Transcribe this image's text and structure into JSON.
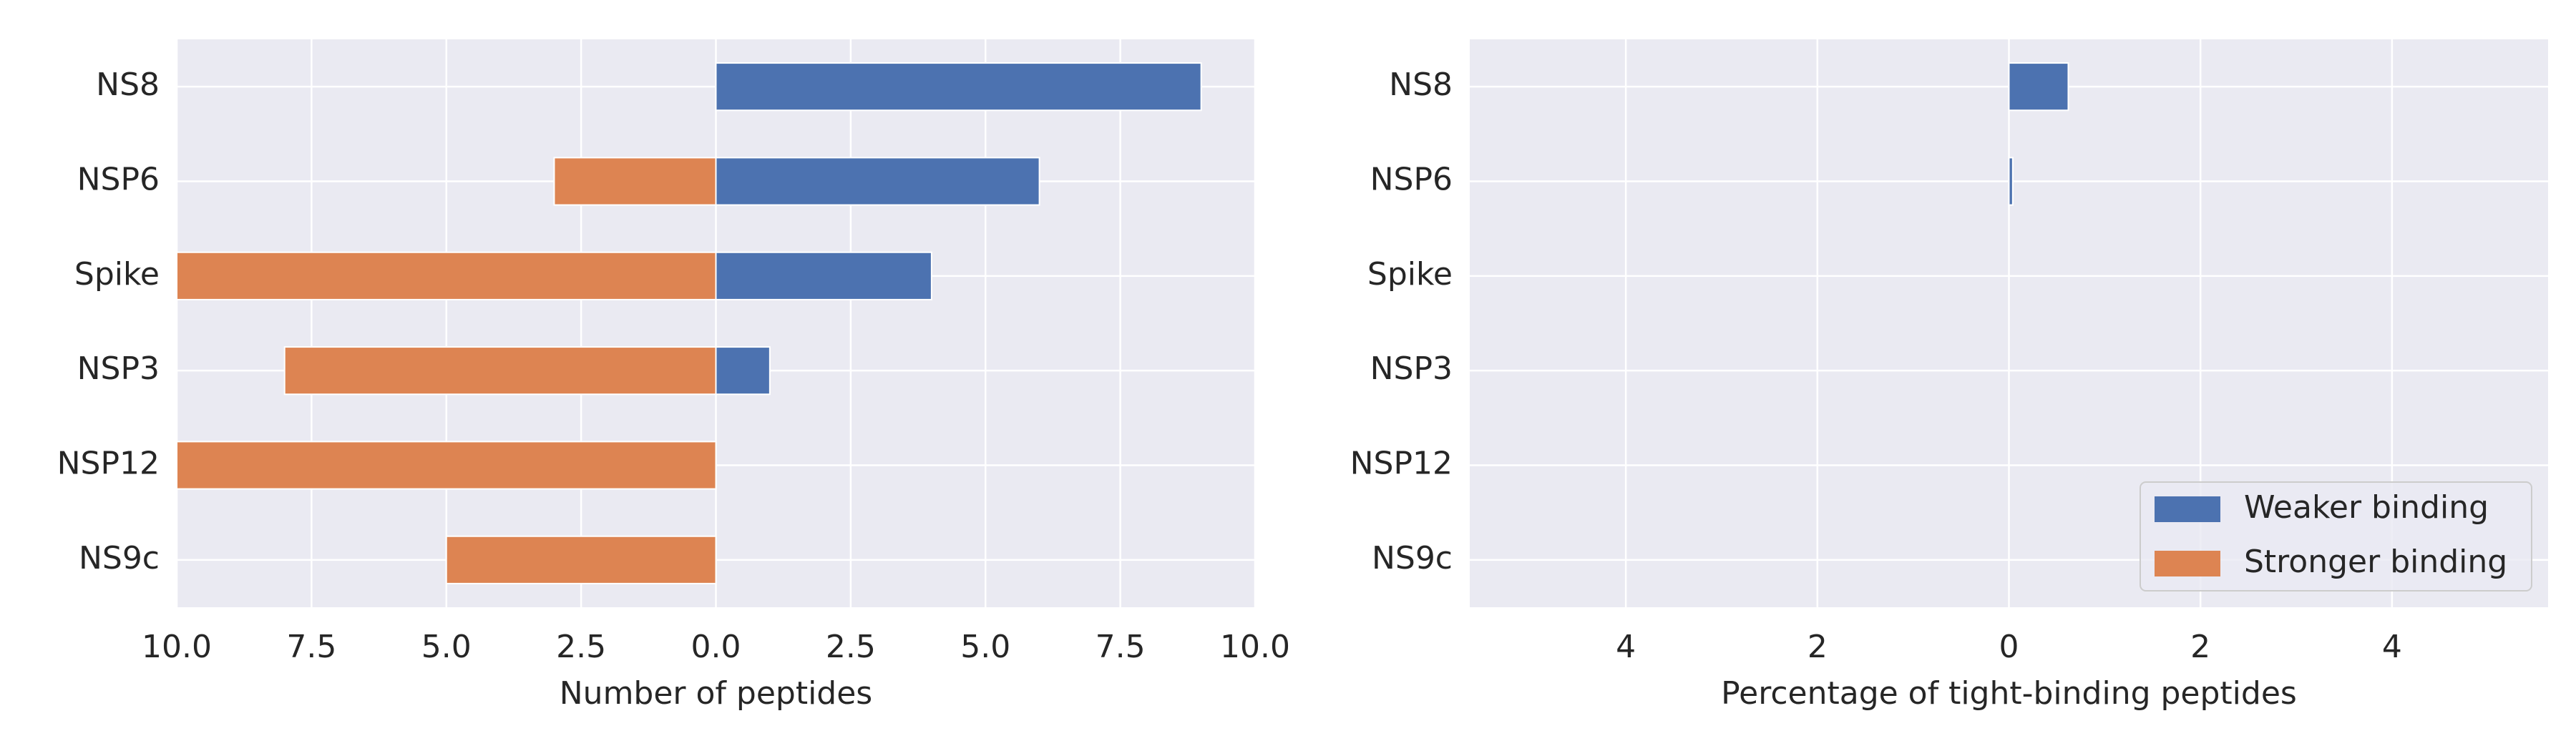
{
  "chart_data": [
    {
      "type": "barh",
      "xlabel": "Number of peptides",
      "categories": [
        "NS8",
        "NSP6",
        "Spike",
        "NSP3",
        "NSP12",
        "NS9c"
      ],
      "series": [
        {
          "name": "Weaker binding",
          "color": "#4c72b0",
          "values": [
            9,
            6,
            4,
            1,
            0,
            0
          ]
        },
        {
          "name": "Stronger binding",
          "color": "#dd8452",
          "values": [
            0,
            -3,
            -10,
            -8,
            -10,
            -5
          ]
        }
      ],
      "xlim": [
        -10,
        10
      ],
      "xticks": [
        {
          "value": -10,
          "label": "10.0"
        },
        {
          "value": -7.5,
          "label": "7.5"
        },
        {
          "value": -5,
          "label": "5.0"
        },
        {
          "value": -2.5,
          "label": "2.5"
        },
        {
          "value": 0,
          "label": "0.0"
        },
        2.5,
        {
          "value": 5,
          "label": "5.0"
        },
        7.5,
        {
          "value": 10,
          "label": "10.0"
        }
      ],
      "grid": true
    },
    {
      "type": "barh",
      "xlabel": "Percentage of tight-binding peptides",
      "categories": [
        "NS8",
        "NSP6",
        "Spike",
        "NSP3",
        "NSP12",
        "NS9c"
      ],
      "series": [
        {
          "name": "Weaker binding",
          "color": "#4c72b0",
          "values": [
            0.62,
            0.04,
            0,
            0,
            0,
            0
          ]
        },
        {
          "name": "Stronger binding",
          "color": "#dd8452",
          "values": [
            0,
            0,
            0,
            0,
            0,
            0
          ]
        }
      ],
      "xlim": [
        -5.63,
        5.63
      ],
      "xticks": [
        {
          "value": -4,
          "label": "4"
        },
        {
          "value": -2,
          "label": "2"
        },
        0,
        2,
        4
      ],
      "grid": true,
      "legend": "lower right"
    }
  ]
}
